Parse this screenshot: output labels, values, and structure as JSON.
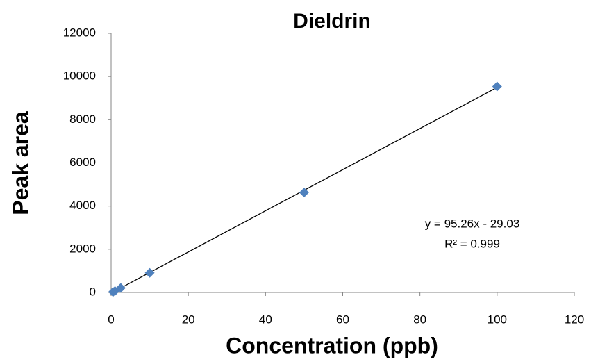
{
  "chart_data": {
    "type": "scatter",
    "title": "Dieldrin",
    "x_label": "Concentration (ppb)",
    "y_label": "Peak area",
    "series": [
      {
        "name": "Dieldrin",
        "color": "#4f81bd",
        "x": [
          0.5,
          1,
          2.5,
          10,
          50,
          100
        ],
        "values": [
          25,
          70,
          210,
          910,
          4630,
          9540
        ]
      }
    ],
    "trendline": {
      "slope": 95.26,
      "intercept": -29.03,
      "color": "#000000",
      "equation": "y = 95.26x - 29.03",
      "r_squared": "R² = 0.999"
    },
    "xlim": [
      0,
      120
    ],
    "xticks": [
      0,
      20,
      40,
      60,
      80,
      100,
      120
    ],
    "ylim": [
      0,
      12000
    ],
    "yticks": [
      0,
      2000,
      4000,
      6000,
      8000,
      10000,
      12000
    ],
    "grid": false
  }
}
